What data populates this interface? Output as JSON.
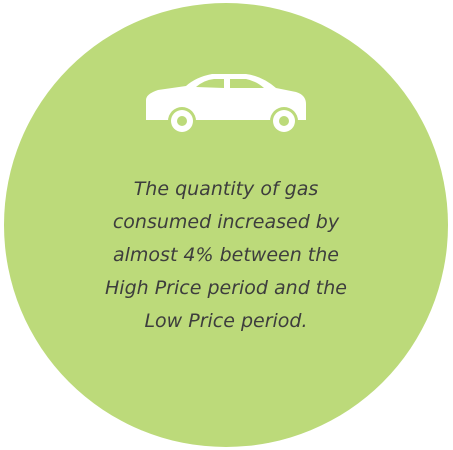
{
  "lines": [
    "The quantity of gas",
    "consumed increased by",
    "almost 4% between the",
    "High Price period and the",
    "Low Price period."
  ]
}
